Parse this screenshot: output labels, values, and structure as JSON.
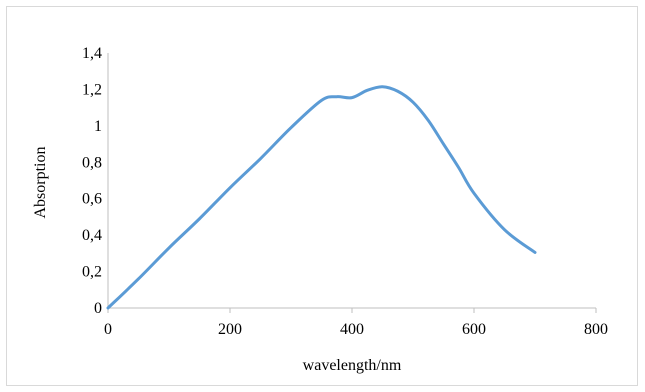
{
  "chart_data": {
    "type": "line",
    "title": "",
    "xlabel": "wavelength/nm",
    "ylabel": "Absorption",
    "xlim": [
      0,
      800
    ],
    "ylim": [
      0,
      1.4
    ],
    "x_ticks": [
      0,
      200,
      400,
      600,
      800
    ],
    "x_tick_labels": [
      "0",
      "200",
      "400",
      "600",
      "800"
    ],
    "y_ticks": [
      0,
      0.2,
      0.4,
      0.6,
      0.8,
      1.0,
      1.2,
      1.4
    ],
    "y_tick_labels": [
      "0",
      "0,2",
      "0,4",
      "0,6",
      "0,8",
      "1",
      "1,2",
      "1,4"
    ],
    "grid": false,
    "legend": "none",
    "series": [
      {
        "color": "#5b9bd5",
        "x": [
          0,
          50,
          100,
          150,
          200,
          250,
          300,
          350,
          375,
          400,
          425,
          450,
          475,
          500,
          525,
          550,
          575,
          600,
          650,
          700
        ],
        "y": [
          0,
          0.16,
          0.33,
          0.49,
          0.66,
          0.82,
          0.99,
          1.14,
          1.16,
          1.155,
          1.195,
          1.215,
          1.19,
          1.13,
          1.03,
          0.9,
          0.77,
          0.63,
          0.43,
          0.305
        ]
      }
    ]
  }
}
